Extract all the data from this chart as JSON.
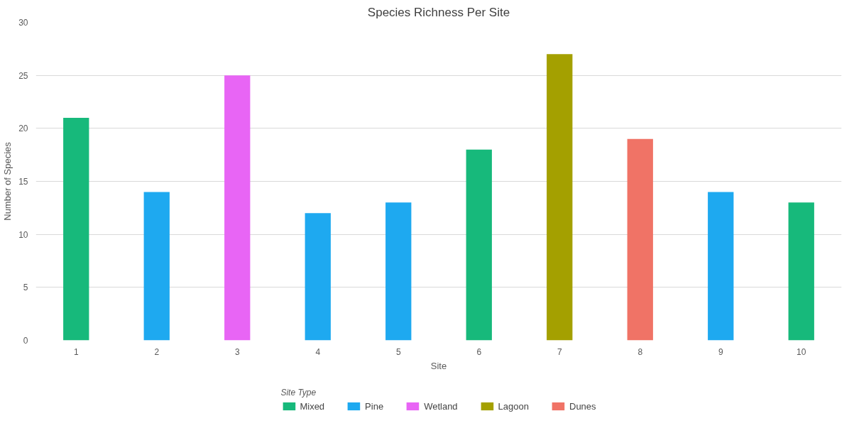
{
  "chart_data": {
    "type": "bar",
    "title": "Species Richness Per Site",
    "xlabel": "Site",
    "ylabel": "Number of Species",
    "legend_title": "Site Type",
    "categories": [
      "1",
      "2",
      "3",
      "4",
      "5",
      "6",
      "7",
      "8",
      "9",
      "10"
    ],
    "series": [
      {
        "name": "Mixed",
        "color": "#17b97b",
        "values": [
          21,
          null,
          null,
          null,
          null,
          18,
          null,
          null,
          null,
          13
        ]
      },
      {
        "name": "Pine",
        "color": "#1ea9f0",
        "values": [
          null,
          14,
          null,
          12,
          13,
          null,
          null,
          null,
          14,
          null
        ]
      },
      {
        "name": "Wetland",
        "color": "#e865f5",
        "values": [
          null,
          null,
          25,
          null,
          null,
          null,
          null,
          null,
          null,
          null
        ]
      },
      {
        "name": "Lagoon",
        "color": "#a4a000",
        "values": [
          null,
          null,
          null,
          null,
          null,
          null,
          27,
          null,
          null,
          null
        ]
      },
      {
        "name": "Dunes",
        "color": "#f07366",
        "values": [
          null,
          null,
          null,
          null,
          null,
          null,
          null,
          19,
          null,
          null
        ]
      }
    ],
    "ylim": [
      0,
      30
    ],
    "yticks": [
      0,
      5,
      10,
      15,
      20,
      25,
      30
    ],
    "grid": "y",
    "legend": "bottom"
  }
}
